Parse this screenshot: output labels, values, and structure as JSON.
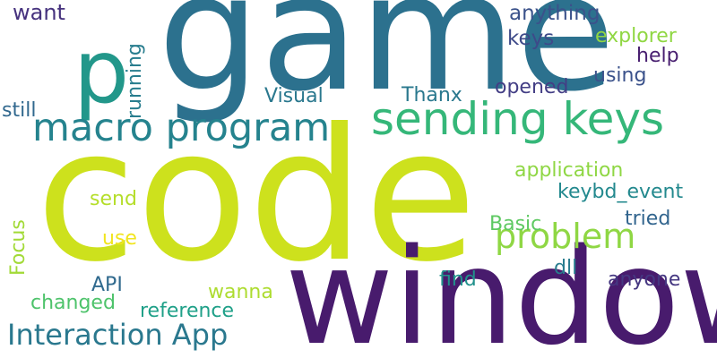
{
  "word_cloud": {
    "background": "#ffffff",
    "words": [
      {
        "text": "code",
        "color": "#cde11d"
      },
      {
        "text": "game",
        "color": "#2c718e"
      },
      {
        "text": "window",
        "color": "#481b6d"
      },
      {
        "text": "p",
        "color": "#22978a"
      },
      {
        "text": "sending keys",
        "color": "#35b779"
      },
      {
        "text": "macro program",
        "color": "#25838e"
      },
      {
        "text": "problem",
        "color": "#8fd744"
      },
      {
        "text": "Interaction App",
        "color": "#2a788e"
      },
      {
        "text": "want",
        "color": "#46327e"
      },
      {
        "text": "anything",
        "color": "#3b528b"
      },
      {
        "text": "keys",
        "color": "#3e4a89"
      },
      {
        "text": "explorer",
        "color": "#90d743"
      },
      {
        "text": "help",
        "color": "#481f70"
      },
      {
        "text": "using",
        "color": "#3b528b"
      },
      {
        "text": "opened",
        "color": "#433e85"
      },
      {
        "text": "Visual",
        "color": "#2a788e"
      },
      {
        "text": "Thanx",
        "color": "#2a788e"
      },
      {
        "text": "still",
        "color": "#31688e"
      },
      {
        "text": "running",
        "color": "#287d8e"
      },
      {
        "text": "application",
        "color": "#8fd744"
      },
      {
        "text": "keybd_event",
        "color": "#23898e"
      },
      {
        "text": "send",
        "color": "#b5de2b"
      },
      {
        "text": "tried",
        "color": "#32658e"
      },
      {
        "text": "Basic",
        "color": "#5ec962"
      },
      {
        "text": "use",
        "color": "#f1e51d"
      },
      {
        "text": "Focus",
        "color": "#a2da37"
      },
      {
        "text": "dll",
        "color": "#287c8e"
      },
      {
        "text": "anyone",
        "color": "#453781"
      },
      {
        "text": "find",
        "color": "#21918c"
      },
      {
        "text": "API",
        "color": "#306a8e"
      },
      {
        "text": "wanna",
        "color": "#addc30"
      },
      {
        "text": "changed",
        "color": "#4ec36b"
      },
      {
        "text": "reference",
        "color": "#1fa088"
      }
    ]
  }
}
